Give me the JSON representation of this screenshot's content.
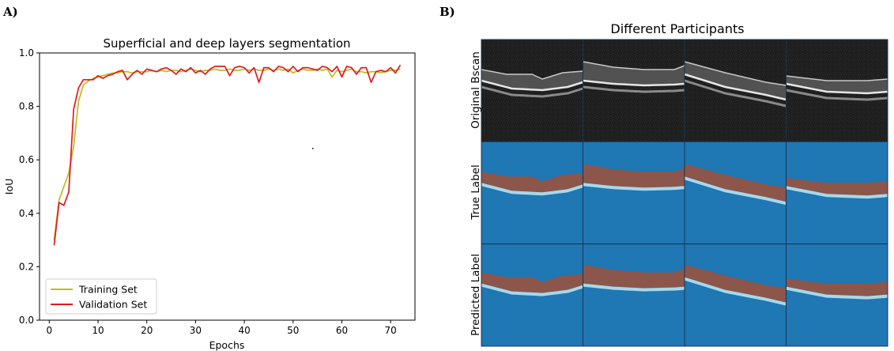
{
  "panels": {
    "a_label": "A)",
    "b_label": "B)"
  },
  "chart_data": [
    {
      "type": "line",
      "title": "Superficial and deep layers segmentation",
      "xlabel": "Epochs",
      "ylabel": "IoU",
      "xlim": [
        -2,
        75
      ],
      "ylim": [
        0.0,
        1.0
      ],
      "xticks": [
        0,
        10,
        20,
        30,
        40,
        50,
        60,
        70
      ],
      "yticks": [
        0.0,
        0.2,
        0.4,
        0.6,
        0.8,
        1.0
      ],
      "grid": false,
      "legend": "lower-left",
      "series": [
        {
          "name": "Training Set",
          "color": "#bcbd22",
          "x": [
            1,
            2,
            3,
            4,
            5,
            6,
            7,
            8,
            9,
            10,
            11,
            12,
            13,
            14,
            15,
            16,
            17,
            18,
            19,
            20,
            21,
            22,
            23,
            24,
            25,
            26,
            27,
            28,
            29,
            30,
            31,
            32,
            33,
            34,
            35,
            36,
            37,
            38,
            39,
            40,
            41,
            42,
            43,
            44,
            45,
            46,
            47,
            48,
            49,
            50,
            51,
            52,
            53,
            54,
            55,
            56,
            57,
            58,
            59,
            60,
            61,
            62,
            63,
            64,
            65,
            66,
            67,
            68,
            69,
            70,
            71,
            72
          ],
          "values": [
            0.3,
            0.45,
            0.5,
            0.55,
            0.65,
            0.82,
            0.88,
            0.895,
            0.905,
            0.91,
            0.915,
            0.92,
            0.925,
            0.925,
            0.93,
            0.93,
            0.925,
            0.93,
            0.93,
            0.93,
            0.935,
            0.93,
            0.935,
            0.93,
            0.935,
            0.935,
            0.93,
            0.935,
            0.94,
            0.935,
            0.93,
            0.935,
            0.935,
            0.94,
            0.935,
            0.935,
            0.94,
            0.935,
            0.935,
            0.94,
            0.935,
            0.94,
            0.935,
            0.935,
            0.94,
            0.935,
            0.94,
            0.935,
            0.94,
            0.925,
            0.935,
            0.94,
            0.935,
            0.935,
            0.94,
            0.935,
            0.94,
            0.91,
            0.935,
            0.93,
            0.935,
            0.94,
            0.93,
            0.93,
            0.925,
            0.93,
            0.93,
            0.925,
            0.93,
            0.935,
            0.935,
            0.94
          ]
        },
        {
          "name": "Validation Set",
          "color": "#e31a1c",
          "x": [
            1,
            2,
            3,
            4,
            5,
            6,
            7,
            8,
            9,
            10,
            11,
            12,
            13,
            14,
            15,
            16,
            17,
            18,
            19,
            20,
            21,
            22,
            23,
            24,
            25,
            26,
            27,
            28,
            29,
            30,
            31,
            32,
            33,
            34,
            35,
            36,
            37,
            38,
            39,
            40,
            41,
            42,
            43,
            44,
            45,
            46,
            47,
            48,
            49,
            50,
            51,
            52,
            53,
            54,
            55,
            56,
            57,
            58,
            59,
            60,
            61,
            62,
            63,
            64,
            65,
            66,
            67,
            68,
            69,
            70,
            71,
            72
          ],
          "values": [
            0.28,
            0.44,
            0.43,
            0.48,
            0.79,
            0.87,
            0.9,
            0.9,
            0.9,
            0.915,
            0.905,
            0.915,
            0.92,
            0.93,
            0.935,
            0.9,
            0.92,
            0.935,
            0.92,
            0.94,
            0.935,
            0.93,
            0.94,
            0.945,
            0.935,
            0.92,
            0.94,
            0.93,
            0.945,
            0.925,
            0.935,
            0.92,
            0.94,
            0.95,
            0.95,
            0.95,
            0.915,
            0.945,
            0.95,
            0.945,
            0.925,
            0.945,
            0.89,
            0.945,
            0.945,
            0.93,
            0.95,
            0.945,
            0.93,
            0.95,
            0.93,
            0.945,
            0.945,
            0.94,
            0.935,
            0.95,
            0.945,
            0.93,
            0.95,
            0.91,
            0.95,
            0.945,
            0.92,
            0.945,
            0.945,
            0.89,
            0.93,
            0.935,
            0.93,
            0.945,
            0.925,
            0.955
          ]
        }
      ]
    }
  ],
  "figure_b": {
    "title": "Different Participants",
    "row_labels": [
      "Original Bscan",
      "True Label",
      "Predicted Label"
    ],
    "colors": {
      "background": "#1f77b4",
      "upper_layer": "#8c564b",
      "lower_layer": "#a9d8e8",
      "divider": "#1b3350",
      "bscan": "#1e1e1e"
    }
  }
}
